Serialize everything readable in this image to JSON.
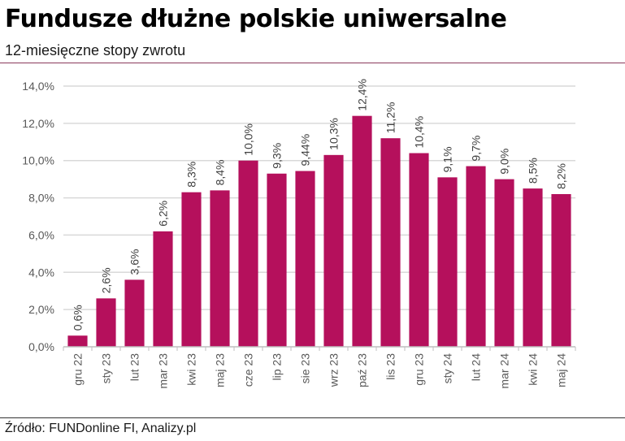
{
  "header": {
    "title": "Fundusze dłużne polskie uniwersalne",
    "subtitle": "12-miesięczne stopy zwrotu"
  },
  "footer": {
    "source": "Źródło: FUNDonline FI, Analizy.pl"
  },
  "colors": {
    "bar": "#b5105c",
    "grid": "#d9d9d9",
    "axis_text": "#595959",
    "label_text": "#404040"
  },
  "chart_data": {
    "type": "bar",
    "categories": [
      "gru 22",
      "sty 23",
      "lut 23",
      "mar 23",
      "kwi 23",
      "maj 23",
      "cze 23",
      "lip 23",
      "sie 23",
      "wrz 23",
      "paź 23",
      "lis 23",
      "gru 23",
      "sty 24",
      "lut 24",
      "mar 24",
      "kwi 24",
      "maj 24"
    ],
    "values": [
      0.6,
      2.6,
      3.6,
      6.2,
      8.3,
      8.4,
      10.0,
      9.3,
      9.44,
      10.3,
      12.4,
      11.2,
      10.4,
      9.1,
      9.7,
      9.0,
      8.5,
      8.2
    ],
    "data_labels": [
      "0,6%",
      "2,6%",
      "3,6%",
      "6,2%",
      "8,3%",
      "8,4%",
      "10,0%",
      "9,3%",
      "9,44%",
      "10,3%",
      "12,4%",
      "11,2%",
      "10,4%",
      "9,1%",
      "9,7%",
      "9,0%",
      "8,5%",
      "8,2%"
    ],
    "yticks": [
      0,
      2,
      4,
      6,
      8,
      10,
      12,
      14
    ],
    "ytick_labels": [
      "0,0%",
      "2,0%",
      "4,0%",
      "6,0%",
      "8,0%",
      "10,0%",
      "12,0%",
      "14,0%"
    ],
    "ylim": [
      0,
      14
    ],
    "grid": true,
    "legend": "none",
    "xlabel": "",
    "ylabel": ""
  }
}
